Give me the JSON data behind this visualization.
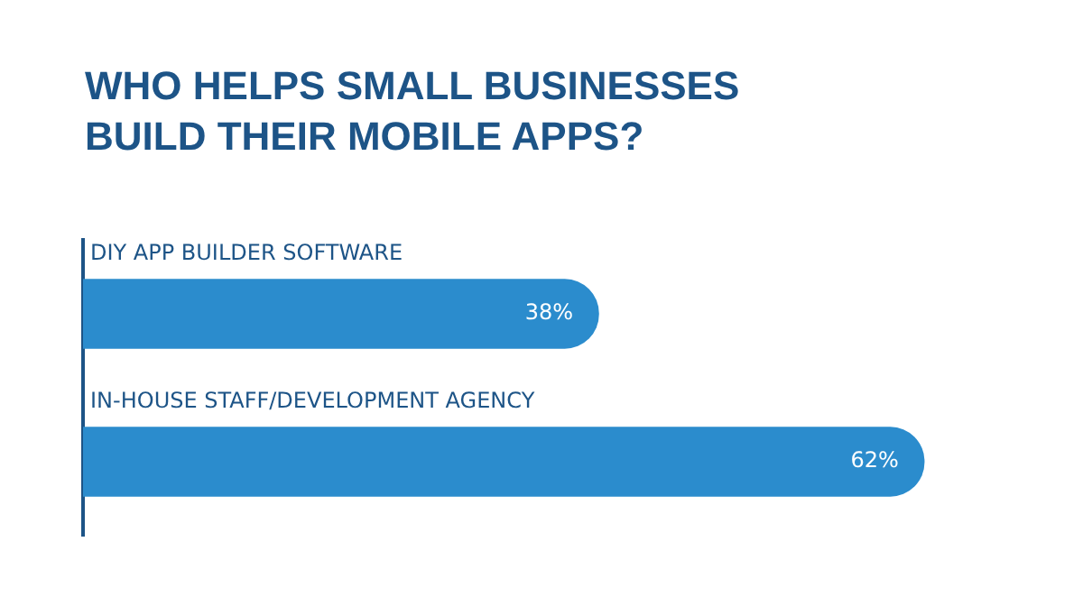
{
  "chart_data": {
    "type": "bar",
    "orientation": "horizontal",
    "title": "WHO HELPS SMALL BUSINESSES BUILD THEIR MOBILE APPS?",
    "categories": [
      "DIY APP BUILDER SOFTWARE",
      "IN-HOUSE STAFF/DEVELOPMENT AGENCY"
    ],
    "values": [
      38,
      62
    ],
    "value_labels": [
      "38%",
      "62%"
    ],
    "color": "#2b8ccd",
    "tick_labels": false,
    "grid": false,
    "legend": false
  }
}
